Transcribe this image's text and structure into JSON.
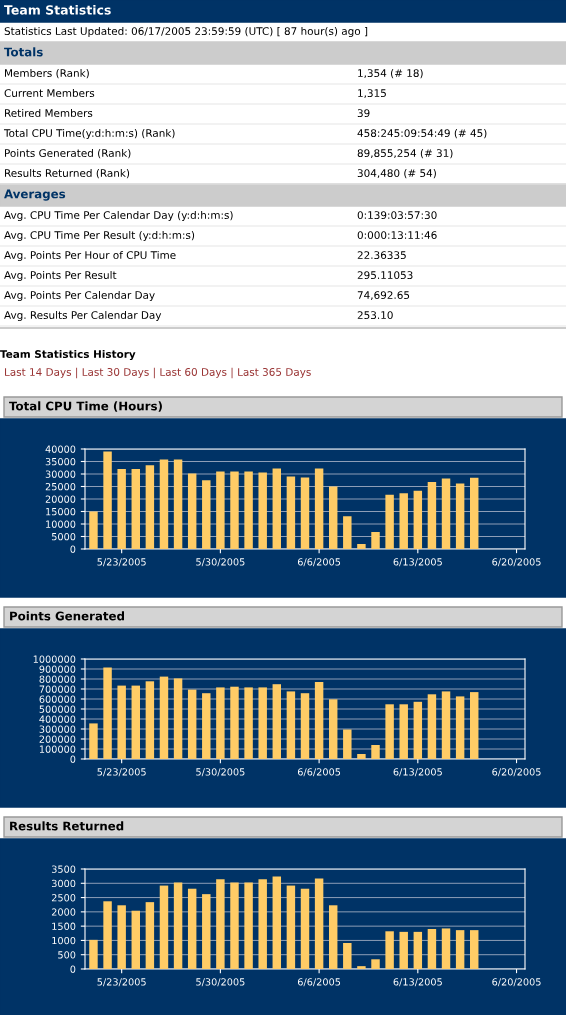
{
  "chart_data": [
    {
      "type": "other",
      "title": "Team Statistics",
      "subtitle": "Statistics Last Updated: 06/17/2005 23:59:59 (UTC) [ 87 hour(s) ago ]",
      "categories": [
        "Totals",
        "Members (Rank)",
        "Current Members",
        "Retired Members",
        "Total CPU Time(y:d:h:m:s) (Rank)",
        "Points Generated (Rank)",
        "Results Returned (Rank)",
        "Averages",
        "Avg. CPU Time Per Calendar Day (y:d:h:m:s)",
        "Avg. CPU Time Per Result (y:d:h:m:s)",
        "Avg. Points Per Hour of CPU Time",
        "Avg. Points Per Result",
        "Avg. Points Per Calendar Day",
        "Avg. Results Per Calendar Day"
      ],
      "value_labels": [
        null,
        "1,354 (# 18)",
        "1,315",
        "39",
        "458:245:09:54:49 (# 45)",
        "89,855,254 (# 31)",
        "304,480 (# 54)",
        null,
        "0:139:03:57:30",
        "0:000:13:11:46",
        "22.36335",
        "295.11053",
        "74,692.65",
        "253.10"
      ],
      "annotations": [
        "Team Statistics History",
        "Last 14 Days | Last 30 Days | Last 60 Days | Last 365 Days"
      ]
    },
    {
      "type": "bar",
      "title": "Total CPU Time (Hours)",
      "color": "#ffcc66",
      "grid": "y",
      "categories": [
        null,
        null,
        "5/23/2005",
        null,
        null,
        null,
        null,
        null,
        null,
        "5/30/2005",
        null,
        null,
        null,
        null,
        null,
        null,
        "6/6/2005",
        null,
        null,
        null,
        null,
        null,
        null,
        "6/13/2005",
        null,
        null,
        null,
        null,
        null,
        null,
        "6/20/2005"
      ],
      "values": [
        15000,
        39000,
        32000,
        32000,
        33500,
        35800,
        35800,
        30200,
        27500,
        31000,
        31000,
        31000,
        30600,
        32200,
        29000,
        28600,
        32200,
        25000,
        13100,
        2000,
        6800,
        21700,
        22300,
        23300,
        26800,
        28200,
        26200,
        28500,
        0,
        0,
        0
      ],
      "ylim": [
        0,
        40000
      ],
      "yticks": [
        0,
        5000,
        10000,
        15000,
        20000,
        25000,
        30000,
        35000,
        40000
      ]
    },
    {
      "type": "bar",
      "title": "Points Generated",
      "color": "#ffcc66",
      "grid": "y",
      "categories": [
        null,
        null,
        "5/23/2005",
        null,
        null,
        null,
        null,
        null,
        null,
        "5/30/2005",
        null,
        null,
        null,
        null,
        null,
        null,
        "6/6/2005",
        null,
        null,
        null,
        null,
        null,
        null,
        "6/13/2005",
        null,
        null,
        null,
        null,
        null,
        null,
        "6/20/2005"
      ],
      "values": [
        356000,
        914000,
        734000,
        734000,
        777000,
        824000,
        806000,
        694000,
        658000,
        716000,
        723000,
        716000,
        716000,
        748000,
        676000,
        658000,
        770000,
        597000,
        295000,
        50000,
        140000,
        547000,
        547000,
        572000,
        647000,
        676000,
        626000,
        669000,
        0,
        0,
        0
      ],
      "ylim": [
        0,
        1000000
      ],
      "yticks": [
        0,
        100000,
        200000,
        300000,
        400000,
        500000,
        600000,
        700000,
        800000,
        900000,
        1000000
      ]
    },
    {
      "type": "bar",
      "title": "Results Returned",
      "color": "#ffcc66",
      "grid": "y",
      "categories": [
        null,
        null,
        "5/23/2005",
        null,
        null,
        null,
        null,
        null,
        null,
        "5/30/2005",
        null,
        null,
        null,
        null,
        null,
        null,
        "6/6/2005",
        null,
        null,
        null,
        null,
        null,
        null,
        "6/13/2005",
        null,
        null,
        null,
        null,
        null,
        null,
        "6/20/2005"
      ],
      "values": [
        1020,
        2370,
        2230,
        2040,
        2340,
        2920,
        3030,
        2810,
        2620,
        3140,
        3030,
        3030,
        3140,
        3240,
        2920,
        2810,
        3170,
        2230,
        910,
        100,
        340,
        1320,
        1300,
        1300,
        1400,
        1420,
        1360,
        1360,
        0,
        0,
        0
      ],
      "ylim": [
        0,
        3500
      ],
      "yticks": [
        0,
        500,
        1000,
        1500,
        2000,
        2500,
        3000,
        3500
      ]
    }
  ]
}
